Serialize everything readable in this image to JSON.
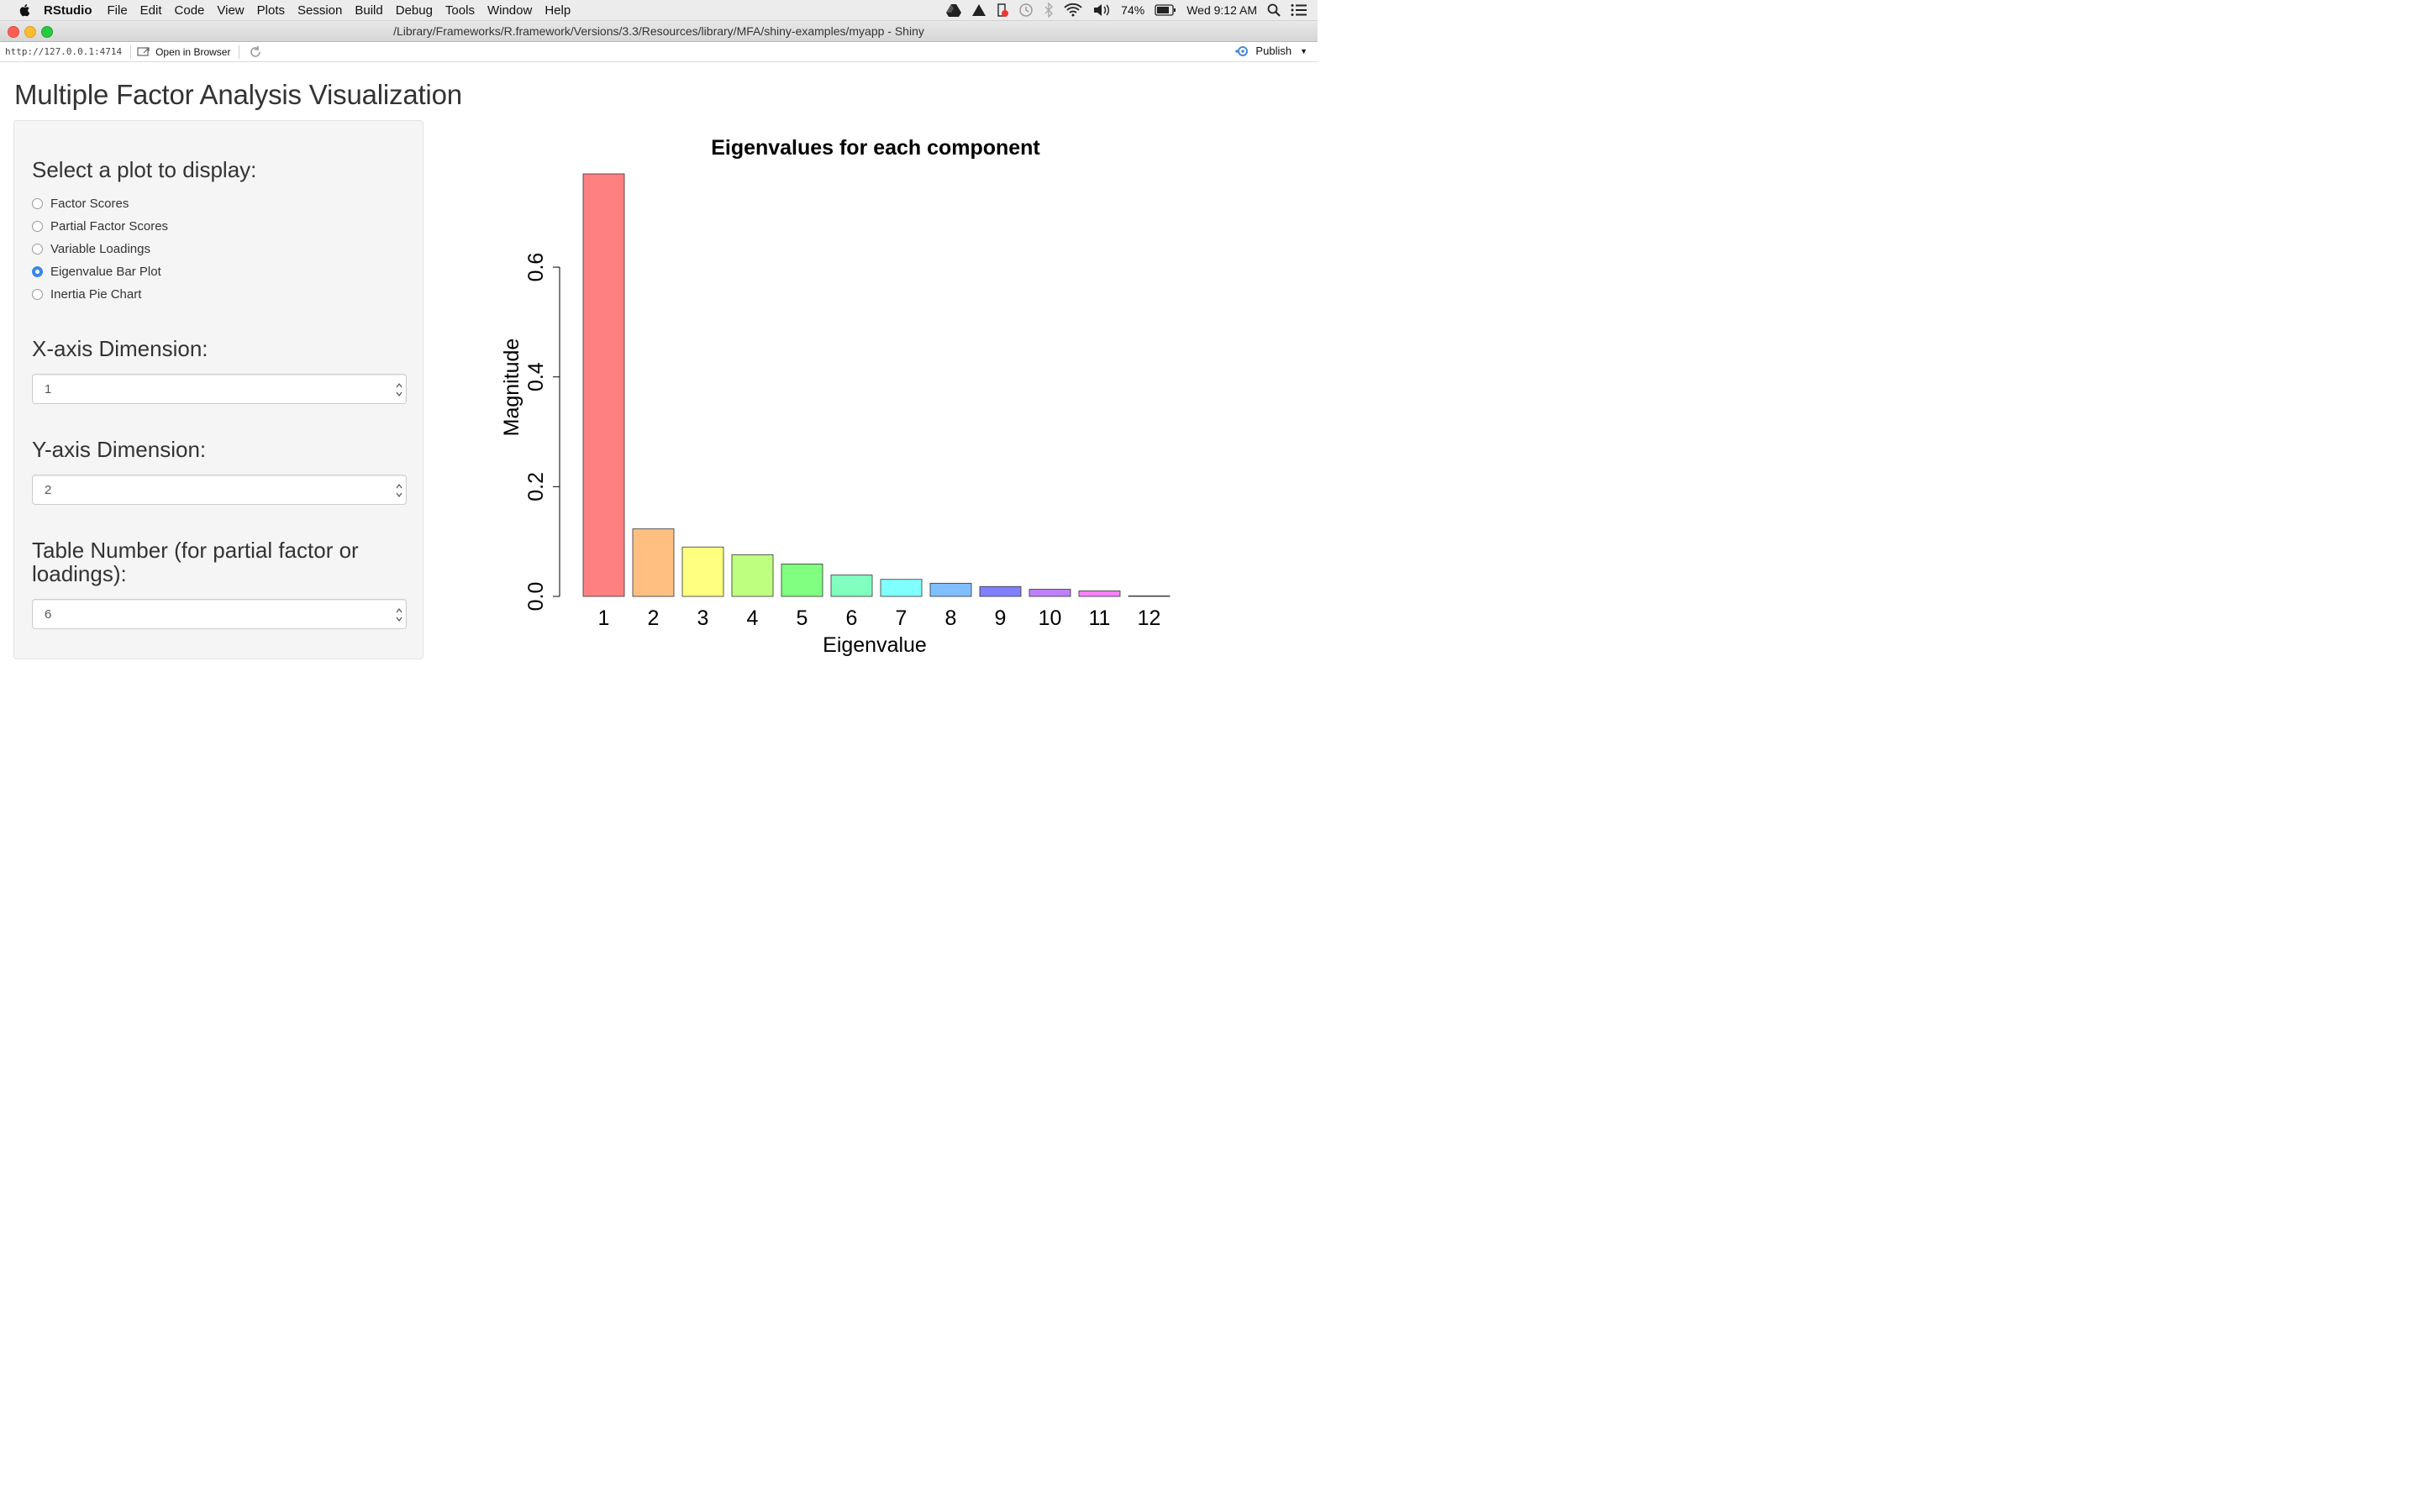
{
  "menubar": {
    "app_name": "RStudio",
    "items": [
      "File",
      "Edit",
      "Code",
      "View",
      "Plots",
      "Session",
      "Build",
      "Debug",
      "Tools",
      "Window",
      "Help"
    ],
    "battery": "74%",
    "clock": "Wed 9:12 AM"
  },
  "window": {
    "title": "/Library/Frameworks/R.framework/Versions/3.3/Resources/library/MFA/shiny-examples/myapp - Shiny"
  },
  "toolbar": {
    "url": "http://127.0.0.1:4714",
    "open_in_browser": "Open in Browser",
    "publish": "Publish"
  },
  "app": {
    "title": "Multiple Factor Analysis Visualization",
    "plot_select": {
      "label": "Select a plot to display:",
      "options": [
        "Factor Scores",
        "Partial Factor Scores",
        "Variable Loadings",
        "Eigenvalue Bar Plot",
        "Inertia Pie Chart"
      ],
      "selected": "Eigenvalue Bar Plot"
    },
    "x_dim": {
      "label": "X-axis Dimension:",
      "value": "1"
    },
    "y_dim": {
      "label": "Y-axis Dimension:",
      "value": "2"
    },
    "table_num": {
      "label": "Table Number (for partial factor or loadings):",
      "value": "6"
    }
  },
  "chart_data": {
    "type": "bar",
    "title": "Eigenvalues for each component",
    "xlabel": "Eigenvalue",
    "ylabel": "Magnitude",
    "categories": [
      "1",
      "2",
      "3",
      "4",
      "5",
      "6",
      "7",
      "8",
      "9",
      "10",
      "11",
      "12"
    ],
    "values": [
      0.77,
      0.123,
      0.09,
      0.076,
      0.059,
      0.039,
      0.031,
      0.024,
      0.018,
      0.013,
      0.01,
      0.001
    ],
    "yticks": [
      "0.0",
      "0.2",
      "0.4",
      "0.6"
    ],
    "ylim": [
      0,
      0.77
    ],
    "colors": [
      "#FF8080",
      "#FFBF80",
      "#FFFF80",
      "#BFFF80",
      "#80FF80",
      "#80FFBF",
      "#80FFFF",
      "#80BFFF",
      "#8080FF",
      "#BF80FF",
      "#FF80FF",
      "#FF80BF"
    ],
    "grid": false,
    "legend": "none"
  }
}
